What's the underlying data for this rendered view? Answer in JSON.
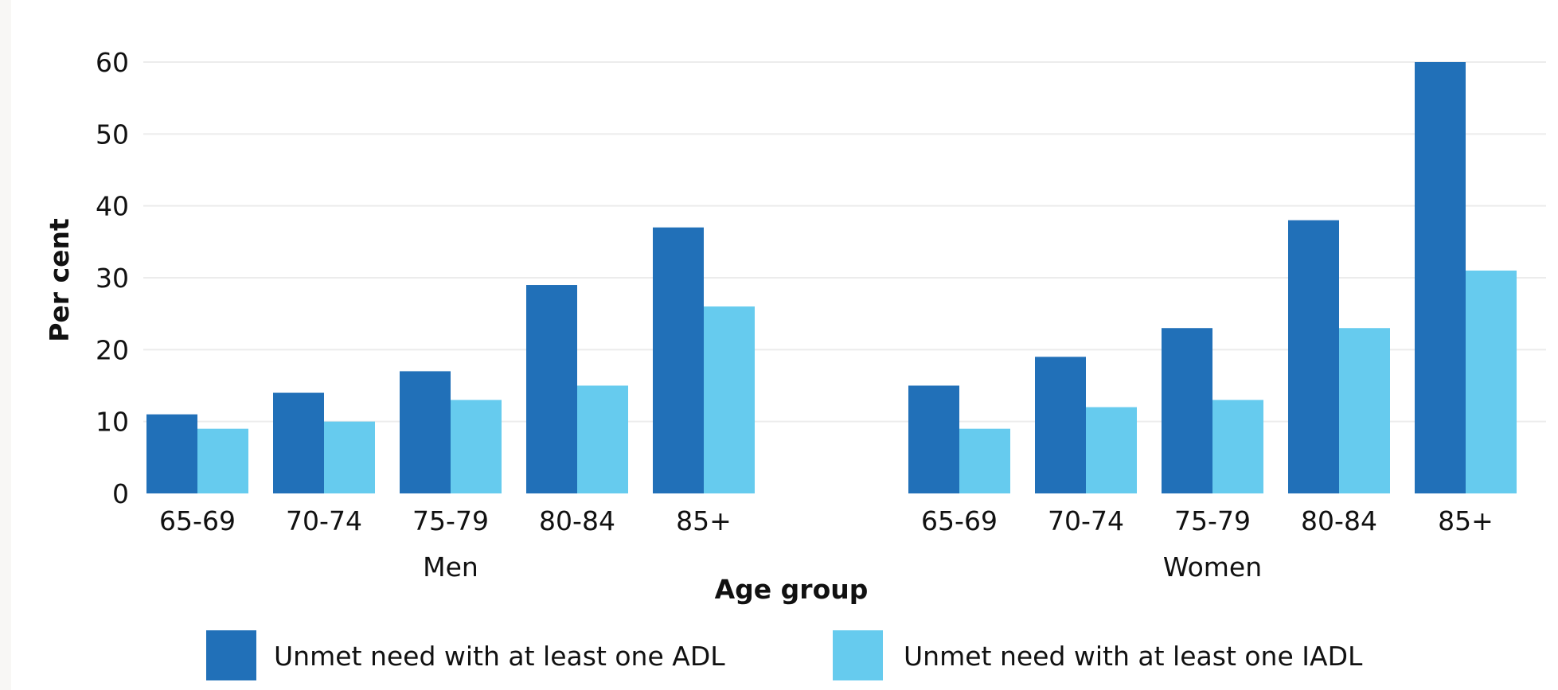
{
  "chart_data": {
    "type": "bar",
    "ylabel": "Per cent",
    "xlabel": "Age group",
    "ylim": [
      0,
      60
    ],
    "yticks": [
      0,
      10,
      20,
      30,
      40,
      50,
      60
    ],
    "grid": true,
    "legend_position": "bottom",
    "groups": [
      {
        "name": "Men",
        "categories": [
          "65-69",
          "70-74",
          "75-79",
          "80-84",
          "85+"
        ]
      },
      {
        "name": "Women",
        "categories": [
          "65-69",
          "70-74",
          "75-79",
          "80-84",
          "85+"
        ]
      }
    ],
    "series": [
      {
        "name": "Unmet need with at least one ADL",
        "color": "#2170b8",
        "values": [
          [
            11,
            14,
            17,
            29,
            37
          ],
          [
            15,
            19,
            23,
            38,
            60
          ]
        ]
      },
      {
        "name": "Unmet need with at least one IADL",
        "color": "#66cbee",
        "values": [
          [
            9,
            10,
            13,
            15,
            26
          ],
          [
            9,
            12,
            13,
            23,
            31
          ]
        ]
      }
    ]
  }
}
